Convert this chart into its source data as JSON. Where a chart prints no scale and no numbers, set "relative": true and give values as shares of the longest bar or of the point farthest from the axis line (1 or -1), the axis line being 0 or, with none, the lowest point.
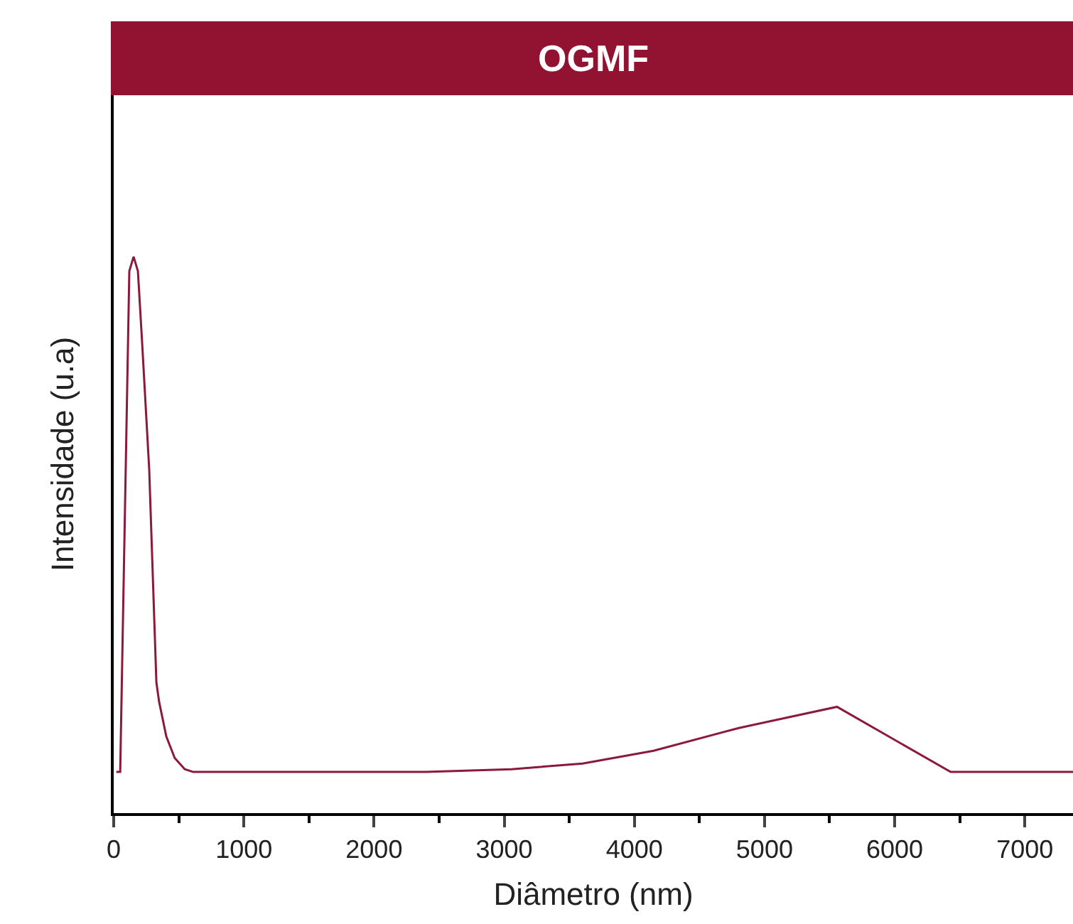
{
  "chart_data": {
    "type": "line",
    "title": "OGMF",
    "xlabel": "Diâmetro (nm)",
    "ylabel": "Intensidade (u.a)",
    "relative": true,
    "x": [
      20,
      50,
      120,
      153,
      186,
      218,
      273,
      328,
      349,
      404,
      469,
      546,
      611,
      2400,
      3057,
      3603,
      4148,
      4803,
      5557,
      6430,
      7370
    ],
    "series": [
      {
        "color": "#8b1a3a",
        "values": [
          0.074,
          0.074,
          0.974,
          1.0,
          0.974,
          0.847,
          0.617,
          0.235,
          0.2,
          0.138,
          0.099,
          0.079,
          0.074,
          0.074,
          0.079,
          0.089,
          0.112,
          0.153,
          0.191,
          0.074,
          0.074
        ]
      }
    ],
    "xlim": [
      0,
      7370
    ],
    "xticks": [
      0,
      {
        "value": 500,
        "label": null
      },
      1000,
      {
        "value": 1500,
        "label": null
      },
      2000,
      {
        "value": 2500,
        "label": null
      },
      3000,
      {
        "value": 3500,
        "label": null
      },
      4000,
      {
        "value": 4500,
        "label": null
      },
      5000,
      {
        "value": 5500,
        "label": null
      },
      6000,
      {
        "value": 6500,
        "label": null
      },
      7000
    ],
    "marker": "none",
    "line_style": "solid"
  }
}
